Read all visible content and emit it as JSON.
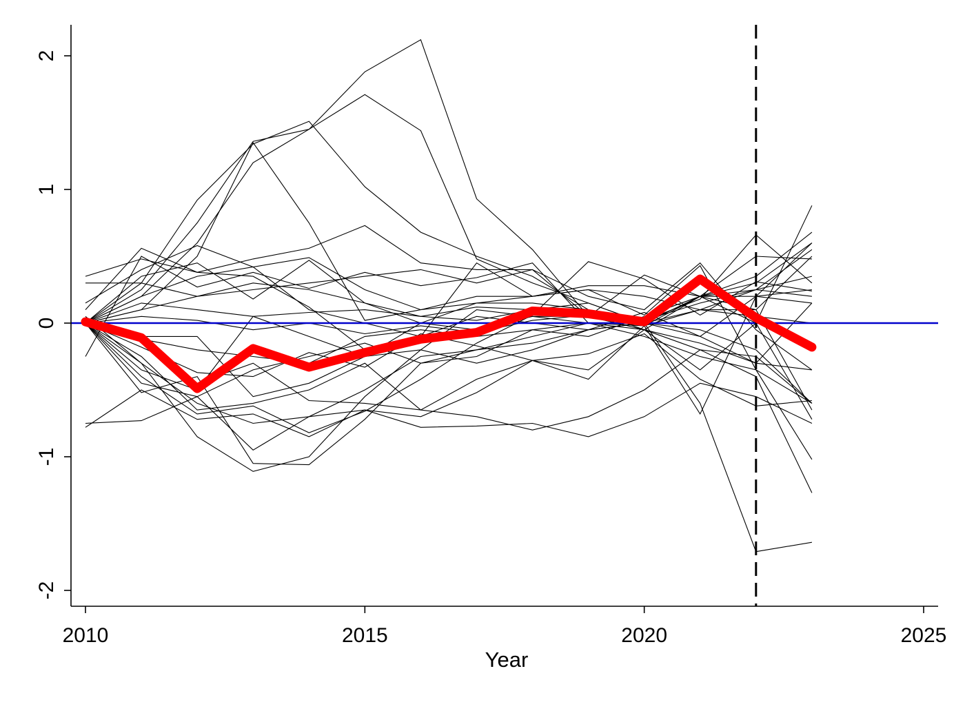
{
  "chart_data": {
    "type": "line",
    "title": "",
    "xlabel": "Year",
    "ylabel": "",
    "xlim": [
      2009.7,
      2025.3
    ],
    "ylim": [
      -2.1,
      2.22
    ],
    "x_ticks": [
      2010,
      2015,
      2020,
      2025
    ],
    "y_ticks": [
      -2,
      -1,
      0,
      1,
      2
    ],
    "grid": false,
    "legend": "none",
    "reference_lines": [
      {
        "orientation": "horizontal",
        "value": 0,
        "color": "#0000cc",
        "style": "solid"
      },
      {
        "orientation": "vertical",
        "value": 2022,
        "color": "#000000",
        "style": "dashed"
      }
    ],
    "highlight_series": {
      "color": "#ff0000",
      "x": [
        2010,
        2011,
        2012,
        2013,
        2014,
        2015,
        2016,
        2017,
        2018,
        2019,
        2020,
        2021,
        2022,
        2023
      ],
      "values": [
        0.01,
        -0.11,
        -0.49,
        -0.19,
        -0.33,
        -0.22,
        -0.12,
        -0.07,
        0.09,
        0.07,
        0.01,
        0.33,
        0.04,
        -0.18
      ]
    },
    "background_series_color": "#000000",
    "series": [
      {
        "x": [
          2010,
          2011,
          2012,
          2013,
          2014,
          2015,
          2016,
          2017,
          2018,
          2019,
          2020,
          2021,
          2022,
          2023
        ],
        "values": [
          0.0,
          0.25,
          0.75,
          1.36,
          1.45,
          1.88,
          2.12,
          0.93,
          0.55,
          0.05,
          -0.05,
          0.2,
          0.3,
          0.6
        ]
      },
      {
        "x": [
          2010,
          2011,
          2012,
          2013,
          2014,
          2015,
          2016,
          2017,
          2018,
          2019,
          2020,
          2021,
          2022,
          2023
        ],
        "values": [
          0.0,
          0.3,
          0.92,
          1.34,
          1.51,
          1.02,
          0.68,
          0.5,
          0.35,
          0.1,
          0.02,
          0.18,
          0.66,
          0.3
        ]
      },
      {
        "x": [
          2010,
          2011,
          2012,
          2013,
          2014,
          2015,
          2016,
          2017,
          2018,
          2019,
          2020,
          2021,
          2022,
          2023
        ],
        "values": [
          0.0,
          0.2,
          0.6,
          1.2,
          1.45,
          1.71,
          1.44,
          0.48,
          0.3,
          0.15,
          0.0,
          0.2,
          0.35,
          0.68
        ]
      },
      {
        "x": [
          2010,
          2011,
          2012,
          2013,
          2014,
          2015,
          2016,
          2017,
          2018,
          2019,
          2020,
          2021,
          2022,
          2023
        ],
        "values": [
          0.0,
          0.1,
          0.5,
          1.35,
          0.75,
          0.02,
          0.1,
          0.15,
          0.2,
          0.25,
          0.06,
          0.43,
          -0.35,
          -0.6
        ]
      },
      {
        "x": [
          2010,
          2011,
          2012,
          2013,
          2014,
          2015,
          2016,
          2017,
          2018,
          2019,
          2020,
          2021,
          2022,
          2023
        ],
        "values": [
          0.35,
          0.48,
          0.38,
          0.48,
          0.56,
          0.73,
          0.45,
          0.4,
          0.4,
          0.05,
          0.36,
          0.2,
          0.25,
          0.55
        ]
      },
      {
        "x": [
          2010,
          2011,
          2012,
          2013,
          2014,
          2015,
          2016,
          2017,
          2018,
          2019,
          2020,
          2021,
          2022,
          2023
        ],
        "values": [
          0.3,
          0.3,
          0.2,
          0.25,
          0.3,
          0.35,
          0.4,
          0.3,
          0.4,
          0.2,
          0.1,
          0.45,
          -0.05,
          -0.35
        ]
      },
      {
        "x": [
          2010,
          2011,
          2012,
          2013,
          2014,
          2015,
          2016,
          2017,
          2018,
          2019,
          2020,
          2021,
          2022,
          2023
        ],
        "values": [
          0.15,
          0.4,
          0.58,
          0.42,
          0.49,
          0.25,
          0.1,
          0.2,
          0.2,
          0.28,
          0.28,
          0.2,
          0.0,
          -0.72
        ]
      },
      {
        "x": [
          2010,
          2011,
          2012,
          2013,
          2014,
          2015,
          2016,
          2017,
          2018,
          2019,
          2020,
          2021,
          2022,
          2023
        ],
        "values": [
          0.1,
          0.56,
          0.38,
          0.35,
          0.12,
          -0.2,
          -0.1,
          0.45,
          0.2,
          0.25,
          0.2,
          0.1,
          0.1,
          0.5
        ]
      },
      {
        "x": [
          2010,
          2011,
          2012,
          2013,
          2014,
          2015,
          2016,
          2017,
          2018,
          2019,
          2020,
          2021,
          2022,
          2023
        ],
        "values": [
          -0.25,
          0.5,
          0.27,
          0.38,
          0.26,
          0.38,
          0.28,
          0.34,
          0.45,
          0.0,
          -0.05,
          -0.15,
          -0.3,
          -0.35
        ]
      },
      {
        "x": [
          2010,
          2011,
          2012,
          2013,
          2014,
          2015,
          2016,
          2017,
          2018,
          2019,
          2020,
          2021,
          2022,
          2023
        ],
        "values": [
          0.0,
          0.35,
          0.45,
          0.18,
          0.47,
          0.15,
          0.05,
          0.02,
          0.1,
          0.15,
          0.0,
          -0.1,
          0.2,
          0.15
        ]
      },
      {
        "x": [
          2010,
          2011,
          2012,
          2013,
          2014,
          2015,
          2016,
          2017,
          2018,
          2019,
          2020,
          2021,
          2022,
          2023
        ],
        "values": [
          0.0,
          0.15,
          0.1,
          0.05,
          0.08,
          0.1,
          0.05,
          0.12,
          0.1,
          0.08,
          0.02,
          0.15,
          0.25,
          0.2
        ]
      },
      {
        "x": [
          2010,
          2011,
          2012,
          2013,
          2014,
          2015,
          2016,
          2017,
          2018,
          2019,
          2020,
          2021,
          2022,
          2023
        ],
        "values": [
          0.0,
          -0.1,
          -0.1,
          -0.55,
          -0.45,
          -0.25,
          0.0,
          0.15,
          0.15,
          0.1,
          -0.05,
          -0.2,
          -0.25,
          -0.6
        ]
      },
      {
        "x": [
          2010,
          2011,
          2012,
          2013,
          2014,
          2015,
          2016,
          2017,
          2018,
          2019,
          2020,
          2021,
          2022,
          2023
        ],
        "values": [
          0.0,
          -0.45,
          -0.55,
          -0.35,
          -0.25,
          -0.15,
          -0.3,
          -0.25,
          -0.05,
          0.0,
          -0.1,
          -0.25,
          -0.35,
          -1.02
        ]
      },
      {
        "x": [
          2010,
          2011,
          2012,
          2013,
          2014,
          2015,
          2016,
          2017,
          2018,
          2019,
          2020,
          2021,
          2022,
          2023
        ],
        "values": [
          0.0,
          -0.3,
          -0.6,
          -0.75,
          -0.7,
          -0.5,
          -0.25,
          -0.2,
          -0.15,
          -0.05,
          0.0,
          -0.6,
          -1.71,
          -1.64
        ]
      },
      {
        "x": [
          2010,
          2011,
          2012,
          2013,
          2014,
          2015,
          2016,
          2017,
          2018,
          2019,
          2020,
          2021,
          2022,
          2023
        ],
        "values": [
          0.0,
          -0.52,
          -0.4,
          -1.05,
          -1.06,
          -0.72,
          -0.3,
          -0.2,
          -0.1,
          0.0,
          -0.02,
          -0.68,
          0.2,
          0.6
        ]
      },
      {
        "x": [
          2010,
          2011,
          2012,
          2013,
          2014,
          2015,
          2016,
          2017,
          2018,
          2019,
          2020,
          2021,
          2022,
          2023
        ],
        "values": [
          0.05,
          -0.3,
          -0.85,
          -1.11,
          -1.0,
          -0.55,
          -0.2,
          0.1,
          0.05,
          0.05,
          0.0,
          0.2,
          0.1,
          -0.65
        ]
      },
      {
        "x": [
          2010,
          2011,
          2012,
          2013,
          2014,
          2015,
          2016,
          2017,
          2018,
          2019,
          2020,
          2021,
          2022,
          2023
        ],
        "values": [
          -0.78,
          -0.5,
          -0.72,
          -0.68,
          -0.85,
          -0.65,
          -0.7,
          -0.52,
          -0.28,
          -0.42,
          -0.02,
          0.2,
          0.2,
          0.25
        ]
      },
      {
        "x": [
          2010,
          2011,
          2012,
          2013,
          2014,
          2015,
          2016,
          2017,
          2018,
          2019,
          2020,
          2021,
          2022,
          2023
        ],
        "values": [
          -0.75,
          -0.73,
          -0.55,
          -0.95,
          -0.7,
          -0.65,
          -0.78,
          -0.77,
          -0.75,
          -0.85,
          -0.7,
          -0.45,
          -0.55,
          -0.75
        ]
      },
      {
        "x": [
          2010,
          2011,
          2012,
          2013,
          2014,
          2015,
          2016,
          2017,
          2018,
          2019,
          2020,
          2021,
          2022,
          2023
        ],
        "values": [
          0.0,
          -0.1,
          -0.45,
          -0.3,
          -0.58,
          -0.6,
          -0.65,
          -0.7,
          -0.8,
          -0.7,
          -0.5,
          -0.2,
          -0.4,
          -1.27
        ]
      },
      {
        "x": [
          2010,
          2011,
          2012,
          2013,
          2014,
          2015,
          2016,
          2017,
          2018,
          2019,
          2020,
          2021,
          2022,
          2023
        ],
        "values": [
          0.0,
          -0.25,
          -0.65,
          -0.6,
          -0.5,
          -0.3,
          -0.65,
          -0.42,
          -0.28,
          -0.35,
          -0.05,
          -0.35,
          0.0,
          0.88
        ]
      },
      {
        "x": [
          2010,
          2011,
          2012,
          2013,
          2014,
          2015,
          2016,
          2017,
          2018,
          2019,
          2020,
          2021,
          2022,
          2023
        ],
        "values": [
          0.0,
          -0.12,
          -0.2,
          -0.25,
          -0.3,
          -0.1,
          -0.05,
          -0.1,
          -0.05,
          -0.1,
          0.05,
          0.2,
          0.5,
          0.48
        ]
      },
      {
        "x": [
          2010,
          2011,
          2012,
          2013,
          2014,
          2015,
          2016,
          2017,
          2018,
          2019,
          2020,
          2021,
          2022,
          2023
        ],
        "values": [
          0.0,
          0.1,
          0.2,
          0.3,
          0.25,
          0.15,
          0.0,
          -0.05,
          0.05,
          0.0,
          0.0,
          0.1,
          0.25,
          0.35
        ]
      },
      {
        "x": [
          2010,
          2011,
          2012,
          2013,
          2014,
          2015,
          2016,
          2017,
          2018,
          2019,
          2020,
          2021,
          2022,
          2023
        ],
        "values": [
          0.0,
          -0.35,
          -0.5,
          0.05,
          -0.1,
          -0.25,
          -0.2,
          -0.3,
          -0.2,
          -0.05,
          0.0,
          -0.05,
          -0.2,
          -0.6
        ]
      },
      {
        "x": [
          2010,
          2011,
          2012,
          2013,
          2014,
          2015,
          2016,
          2017,
          2018,
          2019,
          2020,
          2021,
          2022,
          2023
        ],
        "values": [
          0.0,
          0.2,
          0.35,
          0.42,
          0.1,
          0.0,
          -0.1,
          0.05,
          0.0,
          -0.05,
          0.08,
          -0.1,
          -0.3,
          0.15
        ]
      },
      {
        "x": [
          2010,
          2011,
          2012,
          2013,
          2014,
          2015,
          2016,
          2017,
          2018,
          2019,
          2020,
          2021,
          2022,
          2023
        ],
        "values": [
          0.0,
          -0.4,
          -0.68,
          -0.62,
          -0.82,
          -0.66,
          -0.42,
          -0.15,
          0.06,
          0.46,
          0.33,
          0.06,
          0.31,
          0.24
        ]
      },
      {
        "x": [
          2010,
          2011,
          2012,
          2013,
          2014,
          2015,
          2016,
          2017,
          2018,
          2019,
          2020,
          2021,
          2022,
          2023
        ],
        "values": [
          0.0,
          0.05,
          0.02,
          -0.05,
          0.0,
          -0.08,
          -0.02,
          -0.07,
          0.02,
          0.06,
          -0.02,
          0.1,
          0.05,
          0.0
        ]
      },
      {
        "x": [
          2010,
          2011,
          2012,
          2013,
          2014,
          2015,
          2016,
          2017,
          2018,
          2019,
          2020,
          2021,
          2022,
          2023
        ],
        "values": [
          0.0,
          -0.18,
          -0.37,
          -0.4,
          -0.22,
          -0.33,
          -0.08,
          -0.17,
          -0.28,
          -0.23,
          -0.08,
          -0.42,
          -0.62,
          -0.58
        ]
      }
    ]
  }
}
